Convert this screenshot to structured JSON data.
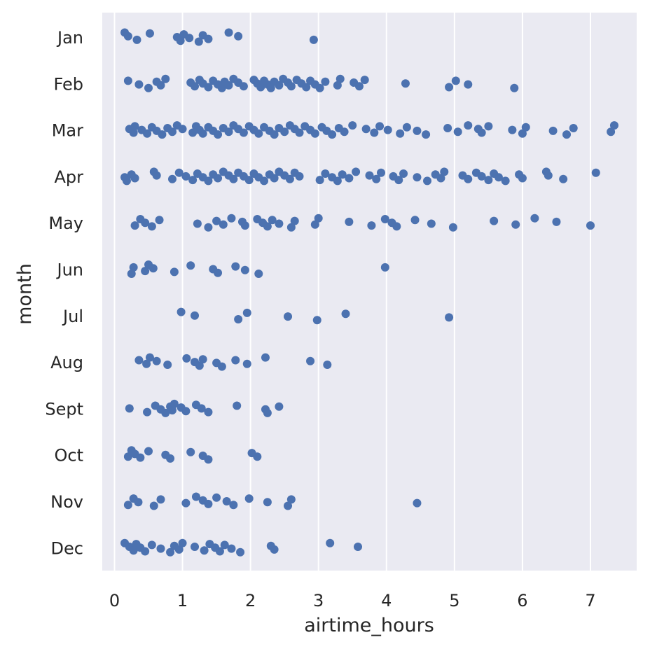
{
  "chart_data": {
    "type": "scatter",
    "subtype": "strip",
    "xlabel": "airtime_hours",
    "ylabel": "month",
    "xlim": [
      -0.18,
      7.68
    ],
    "xticks": [
      0,
      1,
      2,
      3,
      4,
      5,
      6,
      7
    ],
    "categories": [
      "Jan",
      "Feb",
      "Mar",
      "Apr",
      "May",
      "Jun",
      "Jul",
      "Aug",
      "Sept",
      "Oct",
      "Nov",
      "Dec"
    ],
    "grid": true,
    "colors": {
      "background": "#eaeaf2",
      "grid": "#ffffff",
      "marker": "#4c72b0"
    },
    "points": {
      "Jan": [
        0.15,
        0.2,
        0.33,
        0.52,
        0.92,
        0.97,
        1.02,
        1.1,
        1.24,
        1.3,
        1.38,
        1.68,
        1.82,
        2.93
      ],
      "Feb": [
        0.2,
        0.36,
        0.5,
        0.62,
        0.68,
        0.75,
        1.12,
        1.18,
        1.25,
        1.3,
        1.38,
        1.45,
        1.52,
        1.58,
        1.62,
        1.68,
        1.75,
        1.82,
        1.9,
        2.05,
        2.1,
        2.15,
        2.2,
        2.25,
        2.3,
        2.35,
        2.42,
        2.48,
        2.55,
        2.6,
        2.68,
        2.75,
        2.82,
        2.88,
        2.95,
        3.02,
        3.1,
        3.28,
        3.32,
        3.52,
        3.6,
        3.68,
        4.28,
        4.92,
        5.02,
        5.2,
        5.88
      ],
      "Mar": [
        0.22,
        0.28,
        0.3,
        0.4,
        0.48,
        0.55,
        0.62,
        0.7,
        0.78,
        0.85,
        0.92,
        1.0,
        1.15,
        1.2,
        1.25,
        1.3,
        1.38,
        1.45,
        1.52,
        1.6,
        1.68,
        1.75,
        1.82,
        1.9,
        1.98,
        2.05,
        2.12,
        2.2,
        2.28,
        2.35,
        2.42,
        2.5,
        2.58,
        2.65,
        2.72,
        2.8,
        2.88,
        2.95,
        3.05,
        3.12,
        3.2,
        3.3,
        3.38,
        3.5,
        3.7,
        3.82,
        3.9,
        4.02,
        4.2,
        4.3,
        4.45,
        4.58,
        4.9,
        5.05,
        5.2,
        5.35,
        5.4,
        5.5,
        5.85,
        6.0,
        6.05,
        6.45,
        6.65,
        6.75,
        7.3,
        7.35
      ],
      "Apr": [
        0.15,
        0.18,
        0.25,
        0.3,
        0.58,
        0.62,
        0.85,
        0.95,
        1.05,
        1.15,
        1.22,
        1.3,
        1.38,
        1.45,
        1.52,
        1.6,
        1.68,
        1.75,
        1.82,
        1.9,
        1.98,
        2.05,
        2.12,
        2.2,
        2.28,
        2.35,
        2.42,
        2.5,
        2.58,
        2.65,
        2.72,
        3.02,
        3.1,
        3.2,
        3.28,
        3.35,
        3.45,
        3.55,
        3.75,
        3.85,
        3.92,
        4.1,
        4.18,
        4.25,
        4.45,
        4.6,
        4.72,
        4.8,
        4.85,
        5.12,
        5.2,
        5.32,
        5.4,
        5.5,
        5.58,
        5.65,
        5.75,
        5.95,
        6.0,
        6.35,
        6.38,
        6.6,
        7.08
      ],
      "May": [
        0.3,
        0.38,
        0.45,
        0.55,
        0.66,
        1.22,
        1.38,
        1.5,
        1.6,
        1.72,
        1.88,
        1.92,
        2.1,
        2.18,
        2.25,
        2.32,
        2.42,
        2.6,
        2.65,
        2.95,
        3.0,
        3.45,
        3.78,
        3.98,
        4.08,
        4.15,
        4.42,
        4.66,
        4.98,
        5.58,
        5.9,
        6.18,
        6.5,
        7.0
      ],
      "Jun": [
        0.25,
        0.28,
        0.45,
        0.5,
        0.57,
        0.88,
        1.12,
        1.45,
        1.52,
        1.78,
        1.92,
        2.12,
        3.98
      ],
      "Jul": [
        0.98,
        1.18,
        1.82,
        1.95,
        2.55,
        2.98,
        3.4,
        4.92
      ],
      "Aug": [
        0.36,
        0.47,
        0.52,
        0.62,
        0.78,
        1.06,
        1.18,
        1.25,
        1.3,
        1.5,
        1.58,
        1.78,
        1.95,
        2.22,
        2.88,
        3.13
      ],
      "Sept": [
        0.22,
        0.48,
        0.6,
        0.68,
        0.75,
        0.82,
        0.85,
        0.88,
        0.98,
        1.05,
        1.2,
        1.28,
        1.38,
        1.8,
        2.22,
        2.25,
        2.42
      ],
      "Oct": [
        0.2,
        0.25,
        0.3,
        0.38,
        0.5,
        0.75,
        0.82,
        1.12,
        1.3,
        1.38,
        2.02,
        2.1
      ],
      "Nov": [
        0.2,
        0.28,
        0.35,
        0.58,
        0.68,
        1.05,
        1.2,
        1.3,
        1.38,
        1.5,
        1.65,
        1.75,
        1.98,
        2.25,
        2.55,
        2.6,
        4.45
      ],
      "Dec": [
        0.15,
        0.22,
        0.28,
        0.32,
        0.38,
        0.45,
        0.55,
        0.68,
        0.82,
        0.88,
        0.95,
        1.0,
        1.18,
        1.32,
        1.4,
        1.48,
        1.55,
        1.62,
        1.72,
        1.85,
        2.3,
        2.35,
        3.17,
        3.58
      ]
    }
  }
}
